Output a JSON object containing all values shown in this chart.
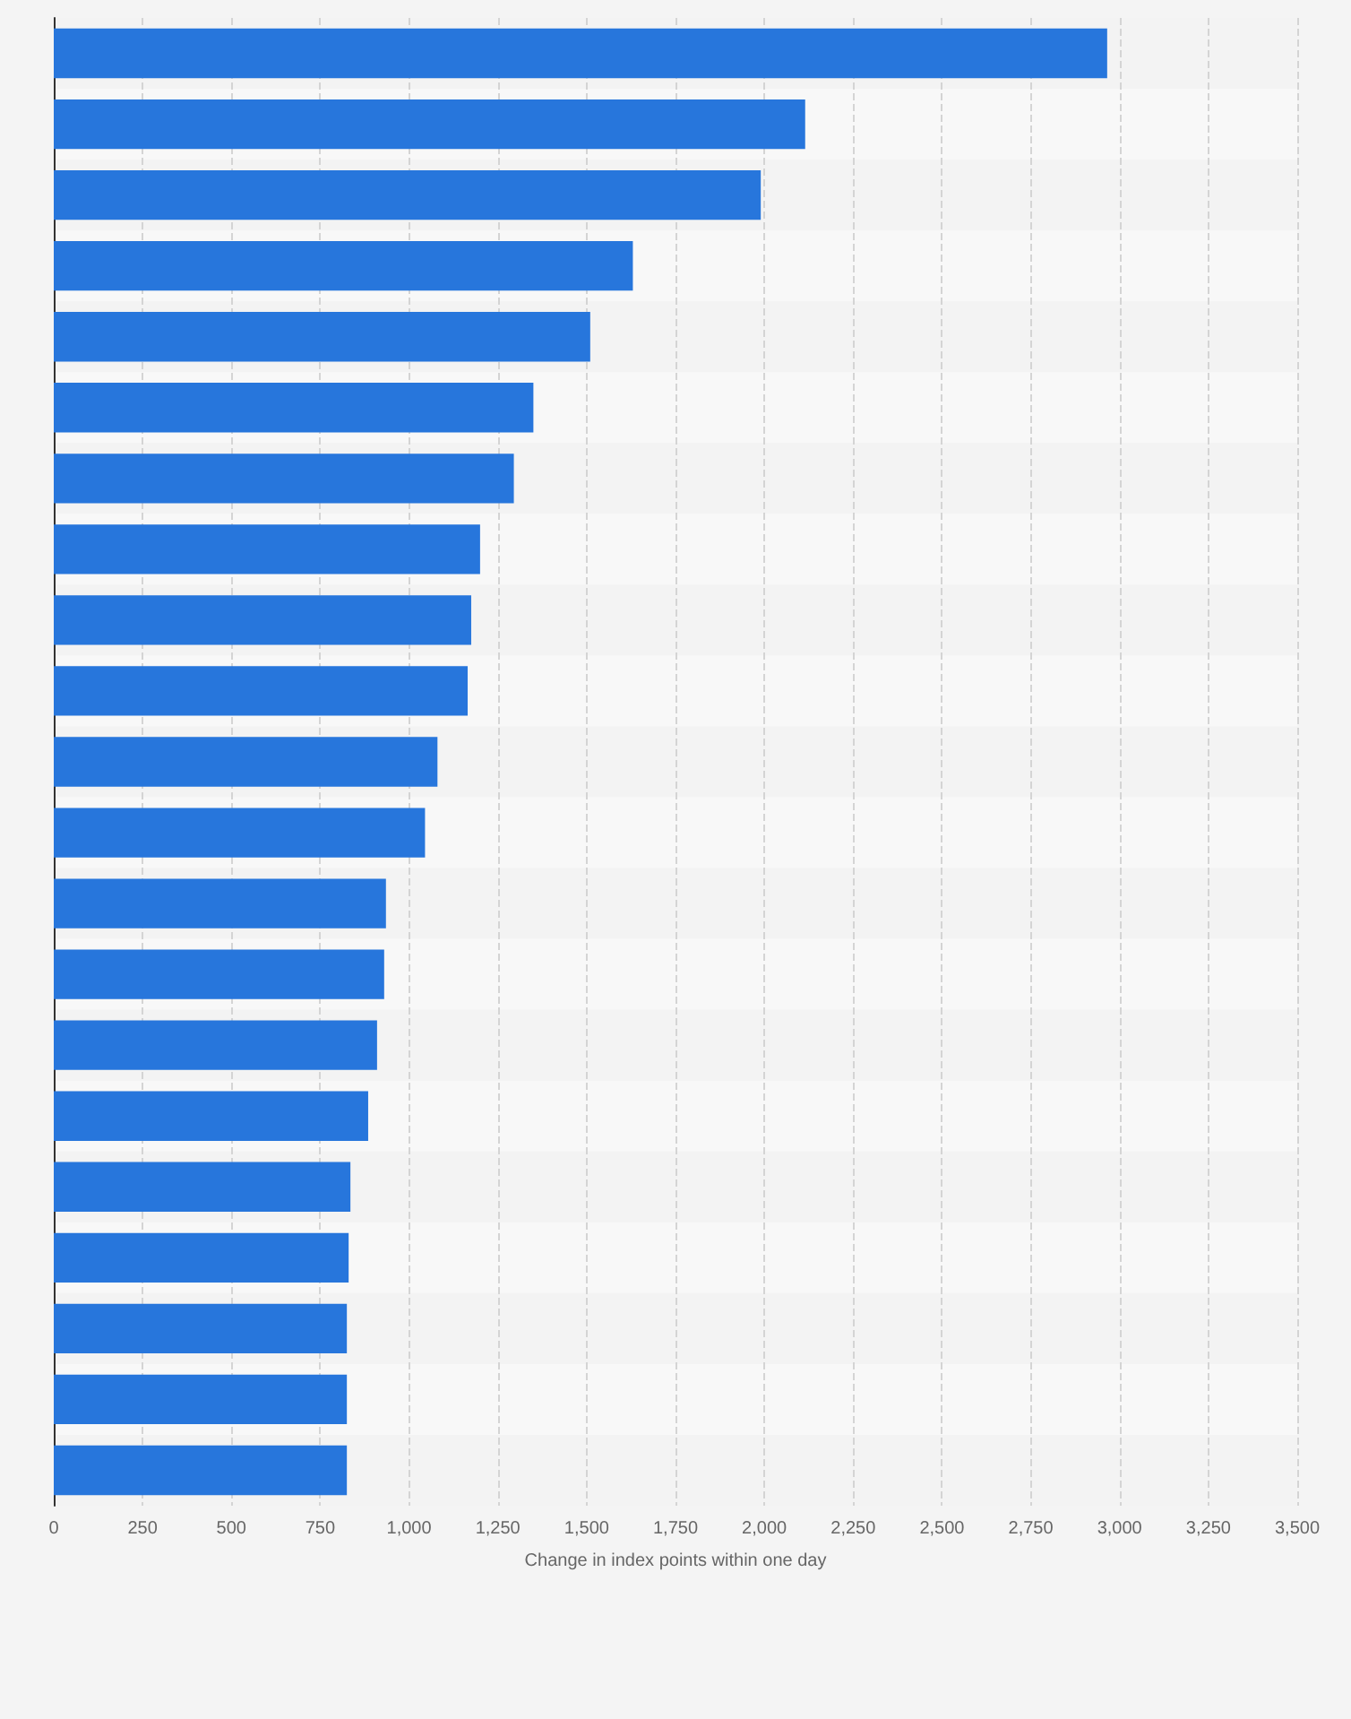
{
  "chart_data": {
    "type": "bar",
    "orientation": "horizontal",
    "xlabel": "Change in index points within one day",
    "categories": [
      null,
      null,
      null,
      null,
      null,
      null,
      null,
      null,
      null,
      null,
      null,
      null,
      null,
      null,
      null,
      null,
      null,
      null,
      null,
      null,
      null
    ],
    "values": [
      2965,
      2115,
      1990,
      1630,
      1510,
      1350,
      1295,
      1200,
      1175,
      1165,
      1080,
      1045,
      935,
      930,
      910,
      885,
      835,
      830,
      825,
      825,
      825
    ],
    "color": "#2776dc",
    "xlim": [
      0,
      3500
    ],
    "xticks": [
      0,
      250,
      500,
      750,
      {
        "value": 1000,
        "label": "1,000"
      },
      {
        "value": 1250,
        "label": "1,250"
      },
      {
        "value": 1500,
        "label": "1,500"
      },
      {
        "value": 1750,
        "label": "1,750"
      },
      {
        "value": 2000,
        "label": "2,000"
      },
      {
        "value": 2250,
        "label": "2,250"
      },
      {
        "value": 2500,
        "label": "2,500"
      },
      {
        "value": 2750,
        "label": "2,750"
      },
      {
        "value": 3000,
        "label": "3,000"
      },
      {
        "value": 3250,
        "label": "3,250"
      },
      {
        "value": 3500,
        "label": "3,500"
      }
    ],
    "grid": "x"
  }
}
